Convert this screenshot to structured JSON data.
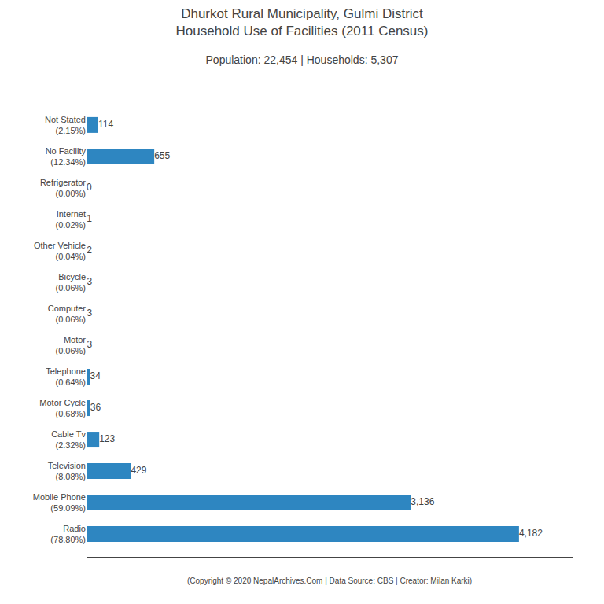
{
  "chart_data": {
    "type": "bar",
    "orientation": "horizontal",
    "title": "Dhurkot Rural Municipality, Gulmi District\nHousehold Use of Facilities (2011 Census)",
    "subtitle": "Population: 22,454 | Households: 5,307",
    "annotations": [
      "(Copyright © 2020 NepalArchives.Com | Data Source: CBS | Creator: Milan Karki)"
    ],
    "categories": [
      "Not Stated\n(2.15%)",
      "No Facility\n(12.34%)",
      "Refrigerator\n(0.00%)",
      "Internet\n(0.02%)",
      "Other Vehicle\n(0.04%)",
      "Bicycle\n(0.06%)",
      "Computer\n(0.06%)",
      "Motor\n(0.06%)",
      "Telephone\n(0.64%)",
      "Motor Cycle\n(0.68%)",
      "Cable Tv\n(2.32%)",
      "Television\n(8.08%)",
      "Mobile Phone\n(59.09%)",
      "Radio\n(78.80%)"
    ],
    "values": [
      114,
      655,
      0,
      1,
      2,
      3,
      3,
      3,
      34,
      36,
      123,
      429,
      3136,
      4182
    ],
    "value_labels": [
      "114",
      "655",
      "0",
      "1",
      "2",
      "3",
      "3",
      "3",
      "34",
      "36",
      "123",
      "429",
      "3,136",
      "4,182"
    ],
    "color": "#2e86c1",
    "xlim": [
      0,
      4700
    ],
    "data_labels": true,
    "tick_labels": "y",
    "grid": false
  }
}
